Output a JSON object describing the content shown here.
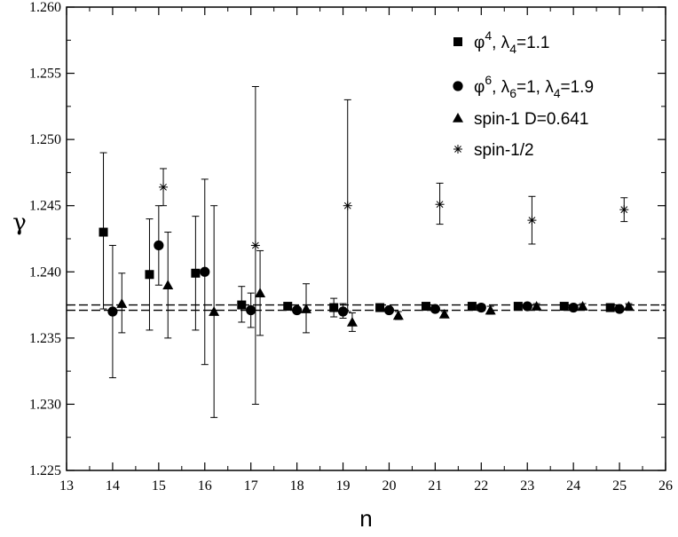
{
  "chart_data": {
    "type": "scatter",
    "title": "",
    "xlabel": "n",
    "ylabel": "γ",
    "xlim": [
      13,
      26
    ],
    "ylim": [
      1.225,
      1.26
    ],
    "x_ticks": [
      13,
      14,
      15,
      16,
      17,
      18,
      19,
      20,
      21,
      22,
      23,
      24,
      25,
      26
    ],
    "x_tick_labels": [
      "13",
      "14",
      "15",
      "16",
      "17",
      "18",
      "19",
      "20",
      "21",
      "22",
      "23",
      "24",
      "25",
      "26"
    ],
    "y_ticks": [
      1.225,
      1.23,
      1.235,
      1.24,
      1.245,
      1.25,
      1.255,
      1.26
    ],
    "y_tick_labels": [
      "1.225",
      "1.230",
      "1.235",
      "1.240",
      "1.245",
      "1.250",
      "1.255",
      "1.260"
    ],
    "grid": false,
    "legend_position": "top-right",
    "reference_lines": [
      1.2371,
      1.2375
    ],
    "series": [
      {
        "name": "φ4, λ4=1.1",
        "legend": {
          "base": "φ",
          "sup": "4",
          "rest1": ", λ",
          "sub1": "4",
          "rest2": "=1.1"
        },
        "marker": "square",
        "points": [
          {
            "x": 13.8,
            "y": 1.243,
            "lo": 1.2372,
            "hi": 1.249
          },
          {
            "x": 14.8,
            "y": 1.2398,
            "lo": 1.2356,
            "hi": 1.244
          },
          {
            "x": 15.8,
            "y": 1.2399,
            "lo": 1.2356,
            "hi": 1.2442
          },
          {
            "x": 16.8,
            "y": 1.2375,
            "lo": 1.2362,
            "hi": 1.2389
          },
          {
            "x": 17.8,
            "y": 1.2374,
            "lo": 1.2372,
            "hi": 1.2376
          },
          {
            "x": 18.8,
            "y": 1.2373,
            "lo": 1.2366,
            "hi": 1.238
          },
          {
            "x": 19.8,
            "y": 1.2373,
            "lo": 1.2371,
            "hi": 1.2375
          },
          {
            "x": 20.8,
            "y": 1.2374,
            "lo": 1.2372,
            "hi": 1.2376
          },
          {
            "x": 21.8,
            "y": 1.2374,
            "lo": 1.2372,
            "hi": 1.2376
          },
          {
            "x": 22.8,
            "y": 1.2374,
            "lo": 1.2372,
            "hi": 1.2376
          },
          {
            "x": 23.8,
            "y": 1.2374,
            "lo": 1.2372,
            "hi": 1.2376
          },
          {
            "x": 24.8,
            "y": 1.2373,
            "lo": 1.2371,
            "hi": 1.2375
          }
        ]
      },
      {
        "name": "φ6, λ6=1, λ4=1.9",
        "legend": {
          "base": "φ",
          "sup": "6",
          "rest1": ", λ",
          "sub1": "6",
          "rest2": "=1, λ",
          "sub2": "4",
          "rest3": "=1.9"
        },
        "marker": "circle",
        "points": [
          {
            "x": 14.0,
            "y": 1.237,
            "lo": 1.232,
            "hi": 1.242
          },
          {
            "x": 15.0,
            "y": 1.242,
            "lo": 1.239,
            "hi": 1.245
          },
          {
            "x": 16.0,
            "y": 1.24,
            "lo": 1.233,
            "hi": 1.247
          },
          {
            "x": 17.0,
            "y": 1.2371,
            "lo": 1.2358,
            "hi": 1.2384
          },
          {
            "x": 18.0,
            "y": 1.2371,
            "lo": 1.2369,
            "hi": 1.2373
          },
          {
            "x": 19.0,
            "y": 1.237,
            "lo": 1.2365,
            "hi": 1.2376
          },
          {
            "x": 20.0,
            "y": 1.2371,
            "lo": 1.2369,
            "hi": 1.2373
          },
          {
            "x": 21.0,
            "y": 1.2372,
            "lo": 1.237,
            "hi": 1.2374
          },
          {
            "x": 22.0,
            "y": 1.2373,
            "lo": 1.2371,
            "hi": 1.2375
          },
          {
            "x": 23.0,
            "y": 1.2374,
            "lo": 1.2372,
            "hi": 1.2376
          },
          {
            "x": 24.0,
            "y": 1.2373,
            "lo": 1.2371,
            "hi": 1.2375
          },
          {
            "x": 25.0,
            "y": 1.2372,
            "lo": 1.237,
            "hi": 1.2374
          }
        ]
      },
      {
        "name": "spin-1  D=0.641",
        "legend": {
          "base": "spin-1  D=0.641"
        },
        "marker": "triangle",
        "points": [
          {
            "x": 14.2,
            "y": 1.2376,
            "lo": 1.2354,
            "hi": 1.2399
          },
          {
            "x": 15.2,
            "y": 1.239,
            "lo": 1.235,
            "hi": 1.243
          },
          {
            "x": 16.2,
            "y": 1.237,
            "lo": 1.229,
            "hi": 1.245
          },
          {
            "x": 17.2,
            "y": 1.2384,
            "lo": 1.2352,
            "hi": 1.2416
          },
          {
            "x": 18.2,
            "y": 1.2372,
            "lo": 1.2354,
            "hi": 1.2391
          },
          {
            "x": 19.2,
            "y": 1.2362,
            "lo": 1.2355,
            "hi": 1.2369
          },
          {
            "x": 20.2,
            "y": 1.2367,
            "lo": 1.2364,
            "hi": 1.237
          },
          {
            "x": 21.2,
            "y": 1.2368,
            "lo": 1.2366,
            "hi": 1.237
          },
          {
            "x": 22.2,
            "y": 1.2371,
            "lo": 1.2368,
            "hi": 1.2374
          },
          {
            "x": 23.2,
            "y": 1.2374,
            "lo": 1.2372,
            "hi": 1.2376
          },
          {
            "x": 24.2,
            "y": 1.2374,
            "lo": 1.2372,
            "hi": 1.2376
          },
          {
            "x": 25.2,
            "y": 1.2374,
            "lo": 1.2372,
            "hi": 1.2376
          }
        ]
      },
      {
        "name": "spin-1/2",
        "legend": {
          "base": "spin-1/2"
        },
        "marker": "asterisk",
        "points": [
          {
            "x": 15.1,
            "y": 1.2464,
            "lo": 1.245,
            "hi": 1.2478
          },
          {
            "x": 17.1,
            "y": 1.242,
            "lo": 1.23,
            "hi": 1.254
          },
          {
            "x": 19.1,
            "y": 1.245,
            "lo": 1.237,
            "hi": 1.253
          },
          {
            "x": 21.1,
            "y": 1.2451,
            "lo": 1.2436,
            "hi": 1.2467
          },
          {
            "x": 23.1,
            "y": 1.2439,
            "lo": 1.2421,
            "hi": 1.2457
          },
          {
            "x": 25.1,
            "y": 1.2447,
            "lo": 1.2438,
            "hi": 1.2456
          }
        ]
      }
    ]
  }
}
